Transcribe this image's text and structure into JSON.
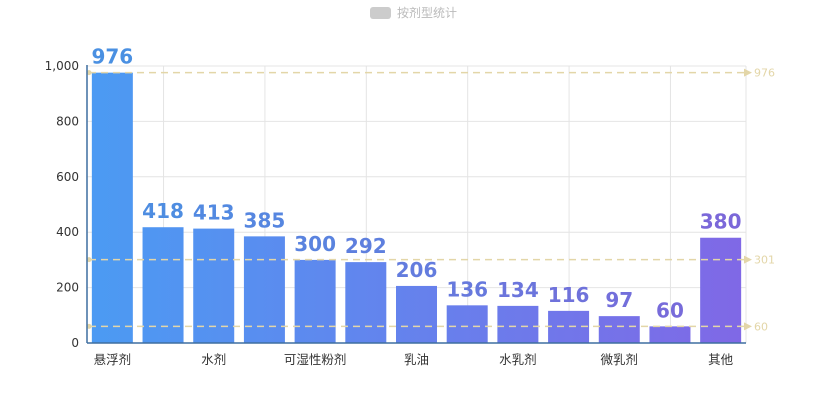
{
  "chart_data": {
    "type": "bar",
    "title": "",
    "legend": {
      "label": "按剂型统计",
      "position": "top-center"
    },
    "xlabel": "",
    "ylabel": "",
    "ylim": [
      0,
      1000
    ],
    "yticks": [
      0,
      200,
      400,
      600,
      800,
      1000
    ],
    "ytick_labels": [
      "0",
      "200",
      "400",
      "600",
      "800",
      "1,000"
    ],
    "categories": [
      "悬浮剂",
      "",
      "水剂",
      "",
      "可湿性粉剂",
      "",
      "乳油",
      "",
      "水乳剂",
      "",
      "微乳剂",
      "",
      "其他"
    ],
    "series": [
      {
        "name": "按剂型统计",
        "values": [
          976,
          418,
          413,
          385,
          300,
          292,
          206,
          136,
          134,
          116,
          97,
          60,
          380
        ]
      }
    ],
    "reference_lines": [
      {
        "label": "976",
        "value": 976
      },
      {
        "label": "301",
        "value": 301
      },
      {
        "label": "60",
        "value": 60
      }
    ],
    "grid": true,
    "colors": {
      "bar_top": "#4b9bf3",
      "bar_bottom": "#8068e6",
      "label_top": "#4a90e2",
      "label_bottom": "#7b68d9",
      "ref": "#e3d6a8",
      "grid": "#e4e4e4",
      "axis": "#3f6fa0"
    }
  }
}
